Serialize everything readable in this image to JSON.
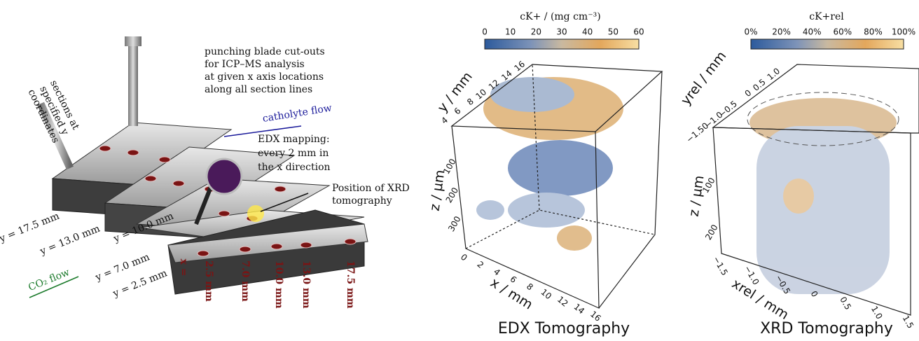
{
  "schematic": {
    "blade_note": [
      "punching blade cut-outs",
      "for ICP–MS analysis",
      "at given x axis locations",
      "along all section lines"
    ],
    "catholyte_flow": "catholyte flow",
    "sections_note": [
      "sections at",
      "specified y",
      "coordinates"
    ],
    "edx_note": [
      "EDX mapping:",
      "every 2 mm in",
      "the x direction"
    ],
    "xrd_note": [
      "Position of XRD",
      "tomography"
    ],
    "y_labels": [
      "y = 17.5 mm",
      "y = 13.0 mm",
      "y = 10.0 mm",
      "y = 7.0 mm",
      "y = 2.5 mm"
    ],
    "x_prefix": "x =",
    "x_labels": [
      "2.5 mm",
      "7.0 mm",
      "10.0 mm",
      "13.0 mm",
      "17.5 mm"
    ],
    "co2_flow": "CO₂ flow"
  },
  "edx_panel": {
    "colorbar_label": "cK+ / (mg cm⁻³)",
    "colorbar_ticks": [
      "0",
      "10",
      "20",
      "30",
      "40",
      "50",
      "60"
    ],
    "y_axis_label": "y / mm",
    "y_ticks": [
      "4",
      "6",
      "8",
      "10",
      "12",
      "14",
      "16"
    ],
    "z_axis_label": "z / μm",
    "z_ticks": [
      "100",
      "200",
      "300"
    ],
    "x_axis_label": "x / mm",
    "x_ticks": [
      "0",
      "2",
      "4",
      "6",
      "8",
      "10",
      "12",
      "14",
      "16"
    ],
    "title": "EDX Tomography"
  },
  "xrd_panel": {
    "colorbar_label": "cK+rel",
    "colorbar_ticks": [
      "0%",
      "20%",
      "40%",
      "60%",
      "80%",
      "100%"
    ],
    "y_axis_label": "yrel / mm",
    "y_ticks": [
      "−1.50",
      "−1.0",
      "−0.5",
      "0",
      "0.5",
      "1.0"
    ],
    "z_axis_label": "z / μm",
    "z_ticks": [
      "100",
      "200"
    ],
    "x_axis_label": "xrel / mm",
    "x_ticks": [
      "−1.5",
      "−1.0",
      "−0.5",
      "0",
      "0.5",
      "1.0",
      "1.5"
    ],
    "title": "XRD Tomography"
  }
}
